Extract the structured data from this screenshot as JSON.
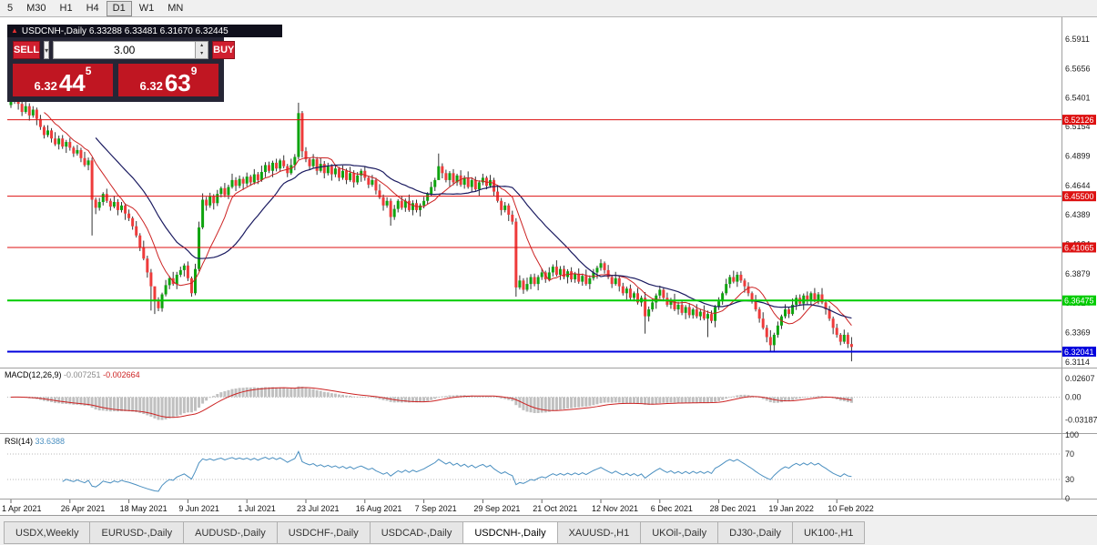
{
  "toolbar": {
    "timeframes": [
      {
        "label": "5",
        "active": false
      },
      {
        "label": "M30",
        "active": false
      },
      {
        "label": "H1",
        "active": false
      },
      {
        "label": "H4",
        "active": false
      },
      {
        "label": "D1",
        "active": true
      },
      {
        "label": "W1",
        "active": false
      },
      {
        "label": "MN",
        "active": false
      }
    ]
  },
  "trade_panel": {
    "title_text": "USDCNH-,Daily 6.33288 6.33481 6.31670 6.32445",
    "collapse_glyph": "▲",
    "sell_label": "SELL",
    "buy_label": "BUY",
    "volume": "3.00",
    "dropdown_glyph": "▾",
    "spin_up_glyph": "▴",
    "spin_down_glyph": "▾",
    "bid": {
      "head": "6.32",
      "pips": "44",
      "sup": "5"
    },
    "ask": {
      "head": "6.32",
      "pips": "63",
      "sup": "9"
    }
  },
  "chart_data": {
    "type": "candlestick",
    "symbol": "USDCNH-",
    "period": "Daily",
    "y_max": 6.6092,
    "y_min": 6.3066,
    "y_axis": [
      {
        "v": 6.5911,
        "t": "6.5911"
      },
      {
        "v": 6.5656,
        "t": "6.5656"
      },
      {
        "v": 6.5401,
        "t": "6.5401"
      },
      {
        "v": 6.5154,
        "t": "6.5154"
      },
      {
        "v": 6.4899,
        "t": "6.4899"
      },
      {
        "v": 6.4644,
        "t": "6.4644"
      },
      {
        "v": 6.4389,
        "t": "6.4389"
      },
      {
        "v": 6.4134,
        "t": "6.4134"
      },
      {
        "v": 6.3879,
        "t": "6.3879"
      },
      {
        "v": 6.3624,
        "t": "6.3624"
      },
      {
        "v": 6.3369,
        "t": "6.3369"
      },
      {
        "v": 6.3114,
        "t": "6.3114"
      }
    ],
    "levels": [
      {
        "price": 6.52126,
        "label": "6.52126",
        "color": "#dd1111",
        "width": 1
      },
      {
        "price": 6.455,
        "label": "6.45500",
        "color": "#dd1111",
        "width": 1
      },
      {
        "price": 6.41065,
        "label": "6.41065",
        "color": "#dd1111",
        "width": 1
      },
      {
        "price": 6.36475,
        "label": "6.36475",
        "color": "#00cc00",
        "width": 2
      },
      {
        "price": 6.32041,
        "label": "6.32041",
        "color": "#0000dd",
        "width": 2
      }
    ],
    "x_labels": [
      "1 Apr 2021",
      "26 Apr 2021",
      "18 May 2021",
      "9 Jun 2021",
      "1 Jul 2021",
      "23 Jul 2021",
      "16 Aug 2021",
      "7 Sep 2021",
      "29 Sep 2021",
      "21 Oct 2021",
      "12 Nov 2021",
      "6 Dec 2021",
      "28 Dec 2021",
      "19 Jan 2022",
      "10 Feb 2022"
    ],
    "label_every": 16,
    "first_open": 6.534,
    "closes": [
      6.538,
      6.542,
      6.535,
      6.528,
      6.533,
      6.525,
      6.53,
      6.522,
      6.515,
      6.508,
      6.512,
      6.505,
      6.5,
      6.505,
      6.498,
      6.502,
      6.497,
      6.492,
      6.495,
      6.488,
      6.482,
      6.486,
      6.452,
      6.445,
      6.45,
      6.457,
      6.451,
      6.446,
      6.45,
      6.443,
      6.447,
      6.44,
      6.436,
      6.429,
      6.421,
      6.411,
      6.401,
      6.389,
      6.377,
      6.364,
      6.358,
      6.37,
      6.378,
      6.384,
      6.379,
      6.387,
      6.391,
      6.395,
      6.384,
      6.371,
      6.392,
      6.428,
      6.452,
      6.447,
      6.455,
      6.449,
      6.457,
      6.462,
      6.456,
      6.463,
      6.469,
      6.464,
      6.47,
      6.466,
      6.472,
      6.467,
      6.474,
      6.469,
      6.476,
      6.482,
      6.477,
      6.484,
      6.479,
      6.486,
      6.481,
      6.475,
      6.482,
      6.489,
      6.527,
      6.494,
      6.487,
      6.481,
      6.487,
      6.477,
      6.483,
      6.475,
      6.481,
      6.474,
      6.479,
      6.471,
      6.477,
      6.469,
      6.475,
      6.467,
      6.473,
      6.477,
      6.471,
      6.465,
      6.469,
      6.46,
      6.454,
      6.447,
      6.451,
      6.437,
      6.444,
      6.451,
      6.445,
      6.451,
      6.443,
      6.449,
      6.443,
      6.447,
      6.451,
      6.457,
      6.463,
      6.469,
      6.481,
      6.475,
      6.469,
      6.475,
      6.467,
      6.473,
      6.465,
      6.471,
      6.463,
      6.469,
      6.461,
      6.467,
      6.471,
      6.464,
      6.469,
      6.459,
      6.451,
      6.443,
      6.447,
      6.439,
      6.433,
      6.376,
      6.382,
      6.374,
      6.379,
      6.385,
      6.379,
      6.385,
      6.389,
      6.383,
      6.389,
      6.394,
      6.387,
      6.392,
      6.385,
      6.39,
      6.383,
      6.388,
      6.381,
      6.386,
      6.379,
      6.384,
      6.389,
      6.393,
      6.397,
      6.391,
      6.385,
      6.379,
      6.384,
      6.377,
      6.371,
      6.375,
      6.367,
      6.371,
      6.363,
      6.367,
      6.351,
      6.357,
      6.363,
      6.369,
      6.374,
      6.367,
      6.361,
      6.365,
      6.357,
      6.361,
      6.354,
      6.359,
      6.352,
      6.357,
      6.351,
      6.355,
      6.349,
      6.353,
      6.347,
      6.359,
      6.364,
      6.371,
      6.379,
      6.385,
      6.381,
      6.387,
      6.382,
      6.377,
      6.371,
      6.365,
      6.357,
      6.349,
      6.341,
      6.333,
      6.326,
      6.335,
      6.343,
      6.351,
      6.357,
      6.353,
      6.361,
      6.367,
      6.362,
      6.369,
      6.364,
      6.371,
      6.365,
      6.37,
      6.363,
      6.357,
      6.349,
      6.341,
      6.335,
      6.329,
      6.335,
      6.327,
      6.3245
    ],
    "wick_pattern": [
      0.0035,
      0.0015,
      0.0045,
      0.002,
      0.0055,
      0.0025,
      0.003,
      0.0018
    ],
    "special_wicks": {
      "2": [
        6.5485,
        6.53
      ],
      "22": [
        6.4885,
        6.421
      ],
      "38": [
        6.392,
        6.356
      ],
      "39": [
        6.372,
        6.353
      ],
      "51": [
        6.433,
        6.39
      ],
      "78": [
        6.536,
        6.487
      ],
      "103": [
        6.453,
        6.4295
      ],
      "116": [
        6.492,
        6.472
      ],
      "137": [
        6.436,
        6.368
      ],
      "172": [
        6.372,
        6.336
      ],
      "189": [
        6.356,
        6.333
      ],
      "206": [
        6.339,
        6.321
      ],
      "228": [
        6.333,
        6.312
      ]
    },
    "colors": {
      "up": "#0fa30f",
      "down": "#ee3b3b",
      "wick": "#333333",
      "ma_fast": "#cc2222",
      "ma_slow": "#1a1a60"
    },
    "ma_fast_period": 10,
    "ma_slow_period": 24
  },
  "macd": {
    "label": "MACD(12,26,9)",
    "value_main": "-0.007251",
    "value_signal": "-0.002664",
    "fast": 12,
    "slow": 26,
    "signal": 9,
    "axis": [
      {
        "v": 0.02607,
        "t": "0.02607"
      },
      {
        "v": 0,
        "t": "0.00"
      },
      {
        "v": -0.03187,
        "t": "-0.03187"
      }
    ],
    "range": [
      -0.0507,
      0.0403
    ],
    "colors": {
      "hist": "#c0c0c0",
      "signal": "#cc2222"
    }
  },
  "rsi": {
    "label": "RSI(14)",
    "value": "33.6388",
    "period": 14,
    "axis": [
      {
        "v": 100,
        "t": "100"
      },
      {
        "v": 70,
        "t": "70"
      },
      {
        "v": 30,
        "t": "30"
      },
      {
        "v": 0,
        "t": "0"
      }
    ],
    "guides": [
      70,
      30
    ],
    "color": "#4a8fc0"
  },
  "tabs": [
    {
      "label": "USDX,Weekly",
      "active": false
    },
    {
      "label": "EURUSD-,Daily",
      "active": false
    },
    {
      "label": "AUDUSD-,Daily",
      "active": false
    },
    {
      "label": "USDCHF-,Daily",
      "active": false
    },
    {
      "label": "USDCAD-,Daily",
      "active": false
    },
    {
      "label": "USDCNH-,Daily",
      "active": true
    },
    {
      "label": "XAUUSD-,H1",
      "active": false
    },
    {
      "label": "UKOil-,Daily",
      "active": false
    },
    {
      "label": "DJ30-,Daily",
      "active": false
    },
    {
      "label": "UK100-,H1",
      "active": false
    }
  ]
}
